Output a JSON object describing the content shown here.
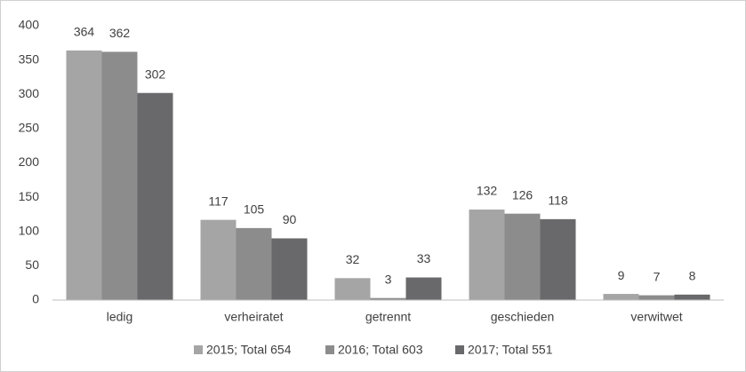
{
  "chart_data": {
    "type": "bar",
    "categories": [
      "ledig",
      "verheiratet",
      "getrennt",
      "geschieden",
      "verwitwet"
    ],
    "series": [
      {
        "name": "2015; Total 654",
        "color": "#a5a5a5",
        "values": [
          364,
          117,
          32,
          132,
          9
        ]
      },
      {
        "name": "2016; Total 603",
        "color": "#8c8c8c",
        "values": [
          362,
          105,
          3,
          126,
          7
        ]
      },
      {
        "name": "2017; Total 551",
        "color": "#69696b",
        "values": [
          302,
          90,
          33,
          118,
          8
        ]
      }
    ],
    "ylim": [
      0,
      400
    ],
    "yticks": [
      0,
      50,
      100,
      150,
      200,
      250,
      300,
      350,
      400
    ],
    "grid": false,
    "legend": "bottom"
  }
}
